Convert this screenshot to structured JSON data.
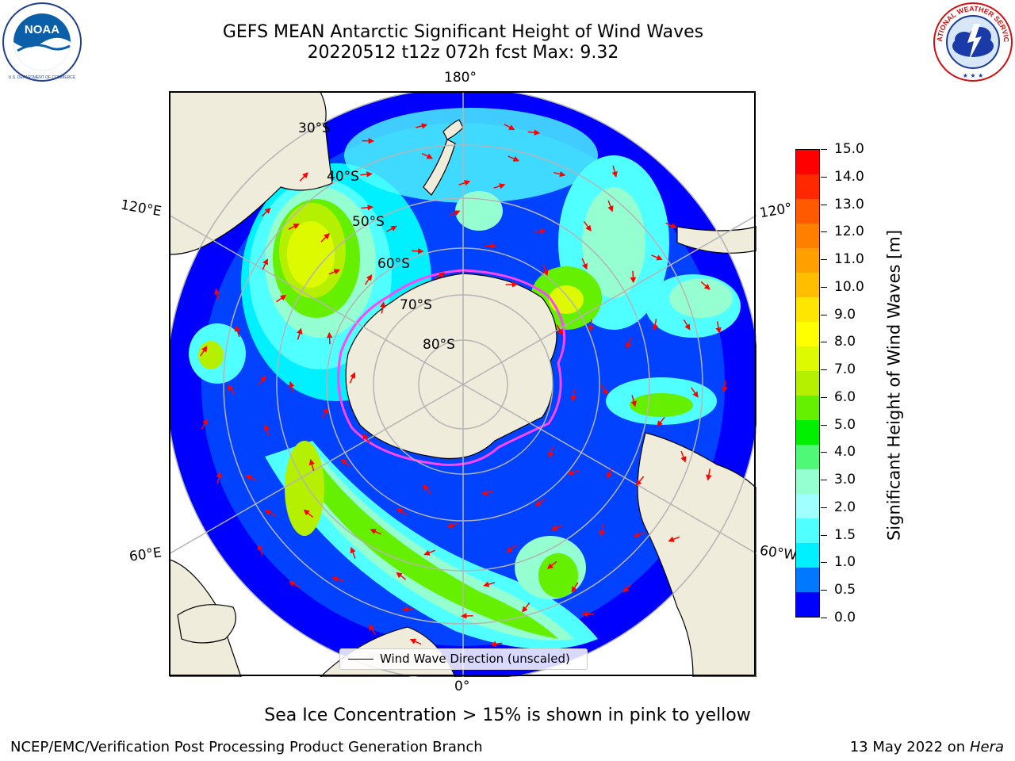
{
  "title": {
    "line1": "GEFS MEAN Antarctic Significant Height of Wind Waves",
    "line2": "20220512 t12z 072h fcst    Max: 9.32"
  },
  "logos": {
    "left": {
      "name": "noaa-logo",
      "text": "NOAA",
      "ring_text": "NATIONAL OCEANIC AND ATMOSPHERIC ADMINISTRATION · U.S. DEPARTMENT OF COMMERCE"
    },
    "right": {
      "name": "nws-logo",
      "ring_text": "NATIONAL WEATHER SERVICE"
    }
  },
  "map": {
    "projection": "south-polar-stereographic",
    "longitude_labels": {
      "top": "180°",
      "bottom": "0°",
      "left_upper": "120°E",
      "left_lower": "60°E",
      "right_upper": "120°",
      "right_lower": "60°W"
    },
    "latitude_labels": [
      "30°S",
      "40°S",
      "50°S",
      "60°S",
      "70°S",
      "80°S"
    ],
    "colors": {
      "land": "#efecdc",
      "ocean_no_data": "#ffffff",
      "arrow": "#ff0000",
      "ice_edge": "#ff44ff",
      "graticule": "#b4b4b4"
    },
    "legend": {
      "label": "Wind Wave Direction (unscaled)"
    }
  },
  "colorbar": {
    "label": "Significant Height of Wind Waves [m]",
    "ticks": [
      "15.0",
      "14.0",
      "13.0",
      "12.0",
      "11.0",
      "10.0",
      "9.0",
      "8.0",
      "7.0",
      "6.0",
      "5.0",
      "4.0",
      "3.0",
      "2.0",
      "1.5",
      "1.0",
      "0.5",
      "0.0"
    ],
    "colors_top_to_bottom": [
      "#ff0000",
      "#ff2800",
      "#ff5a00",
      "#ff8000",
      "#ffa000",
      "#ffbe00",
      "#ffe600",
      "#ffff00",
      "#ddfa00",
      "#b4f000",
      "#64f000",
      "#00f000",
      "#50f878",
      "#96ffd2",
      "#a0ffff",
      "#50ffff",
      "#00f0ff",
      "#0078ff",
      "#0000ff"
    ]
  },
  "notes": {
    "sea_ice": "Sea Ice Concentration > 15% is shown in pink to yellow",
    "credit": "NCEP/EMC/Verification Post Processing Product Generation Branch",
    "date": "13 May 2022 on",
    "machine": "Hera"
  }
}
